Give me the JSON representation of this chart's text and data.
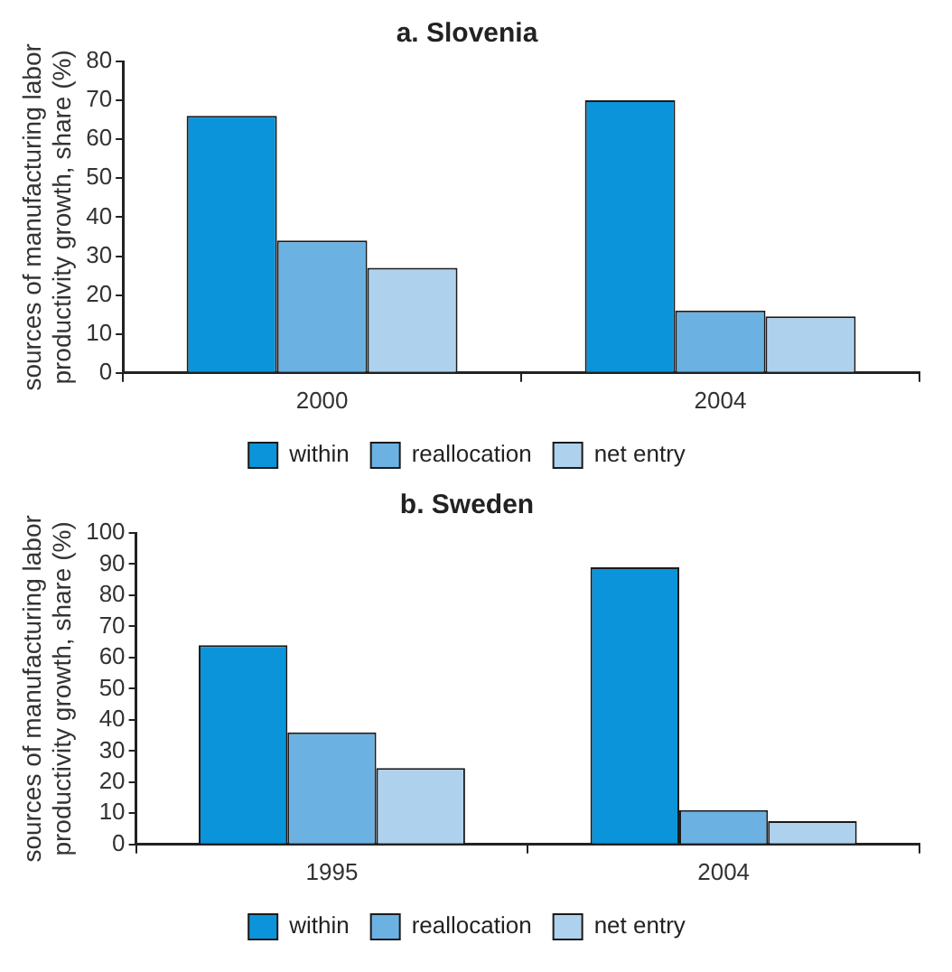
{
  "chart_data": [
    {
      "type": "bar",
      "title": "a. Slovenia",
      "ylabel": "sources of manufacturing labor productivity growth, share (%)",
      "categories": [
        "2000",
        "2004"
      ],
      "series": [
        {
          "name": "within",
          "color": "#0b94d9",
          "values": [
            66,
            70
          ]
        },
        {
          "name": "reallocation",
          "color": "#6bb2e3",
          "values": [
            34,
            16
          ]
        },
        {
          "name": "net entry",
          "color": "#aed1ee",
          "values": [
            27,
            14.5
          ]
        }
      ],
      "ylim": [
        0,
        80
      ],
      "yticks": [
        0,
        10,
        20,
        30,
        40,
        50,
        60,
        70,
        80
      ],
      "grid": false,
      "legend": "bottom"
    },
    {
      "type": "bar",
      "title": "b. Sweden",
      "ylabel": "sources of manufacturing labor productivity growth, share (%)",
      "categories": [
        "1995",
        "2004"
      ],
      "series": [
        {
          "name": "within",
          "color": "#0b94d9",
          "values": [
            64,
            89
          ]
        },
        {
          "name": "reallocation",
          "color": "#6bb2e3",
          "values": [
            36,
            11
          ]
        },
        {
          "name": "net entry",
          "color": "#aed1ee",
          "values": [
            24.5,
            7.5
          ]
        }
      ],
      "ylim": [
        0,
        100
      ],
      "yticks": [
        0,
        10,
        20,
        30,
        40,
        50,
        60,
        70,
        80,
        90,
        100
      ],
      "grid": false,
      "legend": "bottom"
    }
  ]
}
